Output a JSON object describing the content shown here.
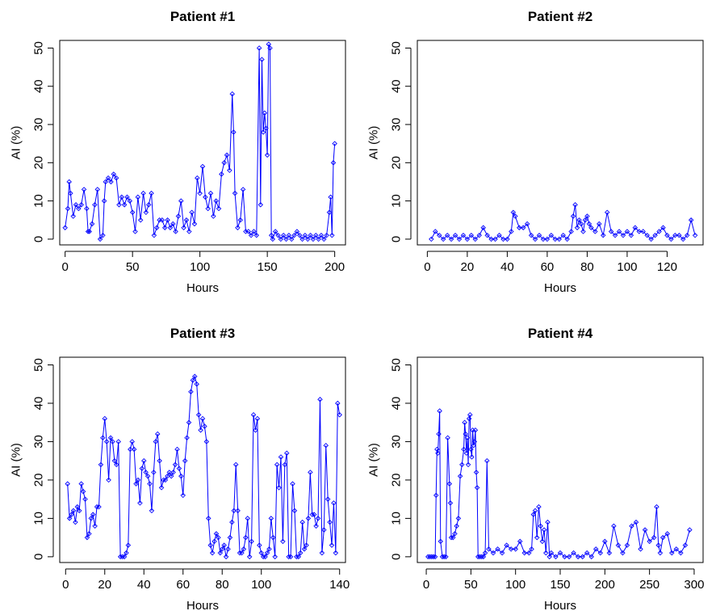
{
  "chart_data": [
    {
      "type": "line",
      "title": "Patient #1",
      "xlabel": "Hours",
      "ylabel": "AI (%)",
      "xlim": [
        -4,
        208
      ],
      "ylim": [
        -1.5,
        52
      ],
      "xticks": [
        0,
        50,
        100,
        150,
        200
      ],
      "yticks": [
        0,
        10,
        20,
        30,
        40,
        50
      ],
      "series": [
        {
          "color": "#0000ff",
          "x": [
            0,
            2,
            3,
            4,
            6,
            8,
            10,
            12,
            14,
            16,
            17,
            18,
            20,
            22,
            24,
            26,
            28,
            29,
            30,
            32,
            34,
            36,
            38,
            40,
            42,
            44,
            46,
            48,
            50,
            52,
            54,
            56,
            58,
            60,
            62,
            64,
            66,
            68,
            70,
            72,
            74,
            76,
            78,
            80,
            82,
            84,
            86,
            88,
            90,
            92,
            94,
            96,
            98,
            100,
            102,
            104,
            106,
            108,
            110,
            112,
            114,
            116,
            118,
            120,
            122,
            124,
            125,
            126,
            128,
            130,
            132,
            134,
            136,
            138,
            140,
            142,
            144,
            145,
            146,
            147,
            148,
            149,
            150,
            151,
            152,
            153,
            154,
            156,
            158,
            160,
            162,
            164,
            166,
            168,
            170,
            172,
            174,
            176,
            178,
            180,
            182,
            184,
            186,
            188,
            190,
            192,
            194,
            196,
            197,
            198,
            199,
            200
          ],
          "y": [
            3,
            8,
            15,
            12,
            6,
            9,
            8,
            9,
            13,
            8,
            2,
            2,
            4,
            9,
            13,
            0,
            1,
            10,
            15,
            16,
            15,
            17,
            16,
            9,
            11,
            9,
            11,
            10,
            7,
            2,
            11,
            5,
            12,
            7,
            9,
            12,
            1,
            3,
            5,
            5,
            3,
            5,
            3,
            4,
            2,
            6,
            10,
            3,
            5,
            2,
            7,
            4,
            16,
            12,
            19,
            11,
            8,
            12,
            6,
            10,
            8,
            17,
            20,
            22,
            18,
            38,
            28,
            12,
            3,
            5,
            13,
            2,
            2,
            1,
            2,
            1,
            50,
            9,
            47,
            28,
            33,
            29,
            22,
            51,
            50,
            1,
            0,
            2,
            1,
            0,
            1,
            0,
            1,
            0,
            1,
            2,
            1,
            0,
            1,
            0,
            1,
            0,
            1,
            0,
            1,
            0,
            1,
            7,
            11,
            1,
            20,
            25
          ]
        }
      ]
    },
    {
      "type": "line",
      "title": "Patient #2",
      "xlabel": "Hours",
      "ylabel": "AI (%)",
      "xlim": [
        -5,
        138
      ],
      "ylim": [
        -1.5,
        52
      ],
      "xticks": [
        0,
        20,
        40,
        60,
        80,
        100,
        120
      ],
      "yticks": [
        0,
        10,
        20,
        30,
        40,
        50
      ],
      "series": [
        {
          "color": "#0000ff",
          "x": [
            2,
            4,
            6,
            8,
            10,
            12,
            14,
            16,
            18,
            20,
            22,
            24,
            26,
            28,
            30,
            32,
            34,
            36,
            38,
            40,
            42,
            43,
            44,
            46,
            48,
            50,
            52,
            54,
            56,
            58,
            60,
            62,
            64,
            66,
            68,
            70,
            72,
            73,
            74,
            75,
            76,
            77,
            78,
            79,
            80,
            81,
            82,
            84,
            86,
            88,
            90,
            92,
            94,
            96,
            98,
            100,
            102,
            104,
            106,
            108,
            110,
            112,
            114,
            116,
            118,
            120,
            122,
            124,
            126,
            128,
            130,
            132,
            134
          ],
          "y": [
            0,
            2,
            1,
            0,
            1,
            0,
            1,
            0,
            1,
            0,
            1,
            0,
            1,
            3,
            1,
            0,
            0,
            1,
            0,
            0,
            2,
            7,
            6,
            3,
            3,
            4,
            1,
            0,
            1,
            0,
            0,
            1,
            0,
            0,
            1,
            0,
            2,
            6,
            9,
            3,
            5,
            4,
            2,
            5,
            6,
            4,
            3,
            2,
            4,
            1,
            7,
            2,
            1,
            2,
            1,
            2,
            1,
            3,
            2,
            2,
            1,
            0,
            1,
            2,
            3,
            1,
            0,
            1,
            1,
            0,
            1,
            5,
            1
          ]
        }
      ]
    },
    {
      "type": "line",
      "title": "Patient #3",
      "xlabel": "Hours",
      "ylabel": "AI (%)",
      "xlim": [
        -3,
        143
      ],
      "ylim": [
        -1.5,
        52
      ],
      "xticks": [
        0,
        20,
        40,
        60,
        80,
        100,
        140
      ],
      "yticks": [
        0,
        10,
        20,
        30,
        40,
        50
      ],
      "series": [
        {
          "color": "#0000ff",
          "x": [
            1,
            2,
            3,
            4,
            5,
            6,
            7,
            8,
            9,
            10,
            11,
            12,
            13,
            14,
            15,
            16,
            17,
            18,
            19,
            20,
            21,
            22,
            23,
            24,
            25,
            26,
            27,
            28,
            29,
            30,
            31,
            32,
            33,
            34,
            35,
            36,
            37,
            38,
            39,
            40,
            41,
            42,
            43,
            44,
            45,
            46,
            47,
            48,
            49,
            50,
            51,
            52,
            53,
            54,
            55,
            56,
            57,
            58,
            59,
            60,
            61,
            62,
            63,
            64,
            65,
            66,
            67,
            68,
            69,
            70,
            71,
            72,
            73,
            74,
            75,
            76,
            77,
            78,
            79,
            80,
            81,
            82,
            83,
            84,
            85,
            86,
            87,
            88,
            89,
            90,
            91,
            92,
            93,
            94,
            95,
            96,
            97,
            98,
            99,
            100,
            101,
            102,
            103,
            104,
            105,
            106,
            107,
            108,
            109,
            110,
            111,
            112,
            113,
            114,
            115,
            116,
            117,
            118,
            119,
            120,
            121,
            122,
            123,
            124,
            125,
            126,
            127,
            128,
            129,
            130,
            131,
            132,
            133,
            134,
            135,
            136,
            137,
            138,
            139,
            140
          ],
          "y": [
            19,
            10,
            11,
            12,
            9,
            13,
            12,
            19,
            17,
            15,
            5,
            6,
            10,
            11,
            8,
            13,
            13,
            24,
            31,
            36,
            30,
            20,
            31,
            30,
            25,
            24,
            30,
            0,
            0,
            0,
            1,
            3,
            28,
            30,
            28,
            19,
            20,
            14,
            23,
            25,
            22,
            21,
            19,
            12,
            22,
            30,
            32,
            25,
            18,
            20,
            20,
            21,
            22,
            21,
            22,
            24,
            28,
            23,
            21,
            16,
            25,
            31,
            35,
            43,
            46,
            47,
            45,
            37,
            33,
            36,
            34,
            30,
            10,
            3,
            1,
            4,
            6,
            5,
            1,
            2,
            3,
            0,
            2,
            5,
            9,
            12,
            24,
            12,
            1,
            1,
            2,
            5,
            10,
            0,
            4,
            37,
            33,
            36,
            3,
            1,
            0,
            0,
            1,
            2,
            10,
            5,
            0,
            24,
            18,
            26,
            4,
            24,
            27,
            0,
            0,
            19,
            12,
            0,
            0,
            1,
            9,
            2,
            3,
            10,
            22,
            11,
            11,
            8,
            10,
            41,
            1,
            7,
            29,
            15,
            9,
            3,
            14,
            1,
            40,
            37
          ]
        }
      ]
    },
    {
      "type": "line",
      "title": "Patient #4",
      "xlabel": "Hours",
      "ylabel": "AI (%)",
      "xlim": [
        -10,
        310
      ],
      "ylim": [
        -1.5,
        52
      ],
      "xticks": [
        0,
        50,
        100,
        150,
        200,
        250,
        300
      ],
      "yticks": [
        0,
        10,
        20,
        30,
        40,
        50
      ],
      "series": [
        {
          "color": "#0000ff",
          "x": [
            2,
            4,
            6,
            8,
            10,
            11,
            12,
            13,
            14,
            15,
            16,
            18,
            20,
            22,
            24,
            26,
            27,
            28,
            30,
            32,
            34,
            36,
            38,
            40,
            42,
            43,
            44,
            45,
            46,
            47,
            48,
            49,
            50,
            51,
            52,
            53,
            54,
            55,
            56,
            57,
            58,
            60,
            62,
            64,
            66,
            68,
            70,
            75,
            80,
            85,
            90,
            95,
            100,
            105,
            110,
            115,
            118,
            120,
            122,
            124,
            126,
            128,
            130,
            132,
            134,
            136,
            138,
            140,
            145,
            150,
            155,
            160,
            165,
            170,
            175,
            180,
            185,
            190,
            195,
            200,
            205,
            210,
            215,
            220,
            225,
            230,
            235,
            240,
            245,
            250,
            255,
            258,
            260,
            262,
            265,
            270,
            275,
            280,
            285,
            290,
            295
          ],
          "y": [
            0,
            0,
            0,
            0,
            0,
            16,
            28,
            27,
            32,
            38,
            4,
            0,
            0,
            0,
            31,
            19,
            14,
            5,
            5,
            6,
            8,
            10,
            21,
            24,
            28,
            35,
            32,
            27,
            31,
            24,
            36,
            37,
            28,
            26,
            33,
            29,
            30,
            33,
            22,
            18,
            0,
            0,
            0,
            0,
            1,
            25,
            2,
            1,
            2,
            1,
            3,
            2,
            2,
            4,
            1,
            1,
            2,
            11,
            12,
            5,
            13,
            8,
            4,
            7,
            1,
            9,
            0,
            1,
            0,
            1,
            0,
            0,
            1,
            0,
            0,
            1,
            0,
            2,
            1,
            4,
            1,
            8,
            3,
            1,
            3,
            8,
            9,
            2,
            7,
            4,
            5,
            13,
            3,
            1,
            5,
            6,
            1,
            2,
            1,
            3,
            7
          ]
        }
      ]
    }
  ]
}
